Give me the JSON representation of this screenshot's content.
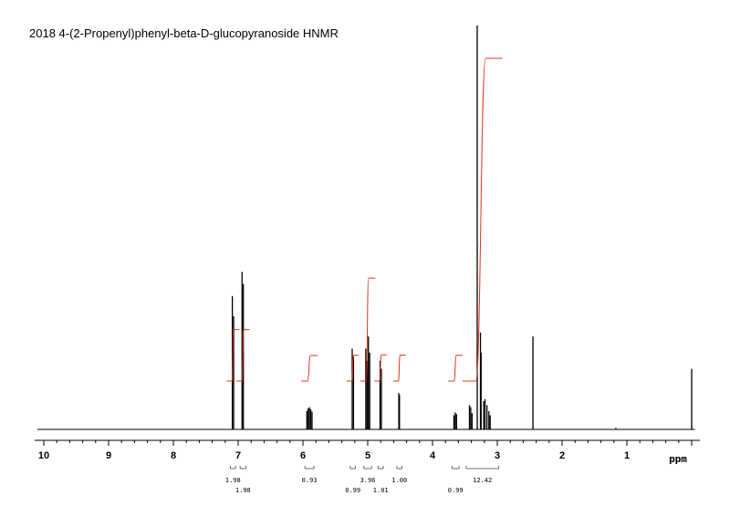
{
  "chart_data": {
    "type": "line",
    "title": "2018  4-(2-Propenyl)phenyl-beta-D-glucopyranoside HNMR",
    "xlabel": "ppm",
    "ylabel": "",
    "x_reversed": true,
    "xlim": [
      10.1,
      -0.05
    ],
    "x_ticks": [
      10,
      9,
      8,
      7,
      6,
      5,
      4,
      3,
      2,
      1
    ],
    "grid": false,
    "legend": "none",
    "colors": {
      "spectrum": "#000000",
      "integral": "#e0341c",
      "axis": "#000000"
    },
    "peaks": [
      {
        "ppm": 7.09,
        "height": 0.33
      },
      {
        "ppm": 7.07,
        "height": 0.28
      },
      {
        "ppm": 6.94,
        "height": 0.39
      },
      {
        "ppm": 6.92,
        "height": 0.36
      },
      {
        "ppm": 5.94,
        "height": 0.046
      },
      {
        "ppm": 5.92,
        "height": 0.052
      },
      {
        "ppm": 5.9,
        "height": 0.055
      },
      {
        "ppm": 5.88,
        "height": 0.05
      },
      {
        "ppm": 5.86,
        "height": 0.044
      },
      {
        "ppm": 5.24,
        "height": 0.2
      },
      {
        "ppm": 5.22,
        "height": 0.18
      },
      {
        "ppm": 5.03,
        "height": 0.2
      },
      {
        "ppm": 5.01,
        "height": 0.17
      },
      {
        "ppm": 4.99,
        "height": 0.23
      },
      {
        "ppm": 4.97,
        "height": 0.19
      },
      {
        "ppm": 4.81,
        "height": 0.17
      },
      {
        "ppm": 4.79,
        "height": 0.15
      },
      {
        "ppm": 4.52,
        "height": 0.09
      },
      {
        "ppm": 4.51,
        "height": 0.085
      },
      {
        "ppm": 3.67,
        "height": 0.035
      },
      {
        "ppm": 3.65,
        "height": 0.042
      },
      {
        "ppm": 3.63,
        "height": 0.038
      },
      {
        "ppm": 3.43,
        "height": 0.06
      },
      {
        "ppm": 3.41,
        "height": 0.055
      },
      {
        "ppm": 3.39,
        "height": 0.04
      },
      {
        "ppm": 3.31,
        "height": 1.0
      },
      {
        "ppm": 3.26,
        "height": 0.24
      },
      {
        "ppm": 3.25,
        "height": 0.19
      },
      {
        "ppm": 3.21,
        "height": 0.07
      },
      {
        "ppm": 3.19,
        "height": 0.075
      },
      {
        "ppm": 3.16,
        "height": 0.06
      },
      {
        "ppm": 3.13,
        "height": 0.045
      },
      {
        "ppm": 3.11,
        "height": 0.035
      },
      {
        "ppm": 2.45,
        "height": 0.23
      },
      {
        "ppm": 1.17,
        "height": 0.004
      },
      {
        "ppm": 0.0,
        "height": 0.15
      }
    ],
    "integrals": [
      {
        "from": 7.12,
        "to": 7.04,
        "value": "1.98"
      },
      {
        "from": 6.97,
        "to": 6.88,
        "value": "1.98"
      },
      {
        "from": 5.97,
        "to": 5.83,
        "value": "0.93"
      },
      {
        "from": 5.27,
        "to": 5.19,
        "value": "0.99"
      },
      {
        "from": 5.06,
        "to": 4.94,
        "value": "3.96"
      },
      {
        "from": 4.84,
        "to": 4.76,
        "value": "1.01"
      },
      {
        "from": 4.55,
        "to": 4.47,
        "value": "1.00"
      },
      {
        "from": 3.7,
        "to": 3.59,
        "value": "0.99"
      },
      {
        "from": 3.48,
        "to": 2.98,
        "value": "12.42"
      }
    ]
  }
}
